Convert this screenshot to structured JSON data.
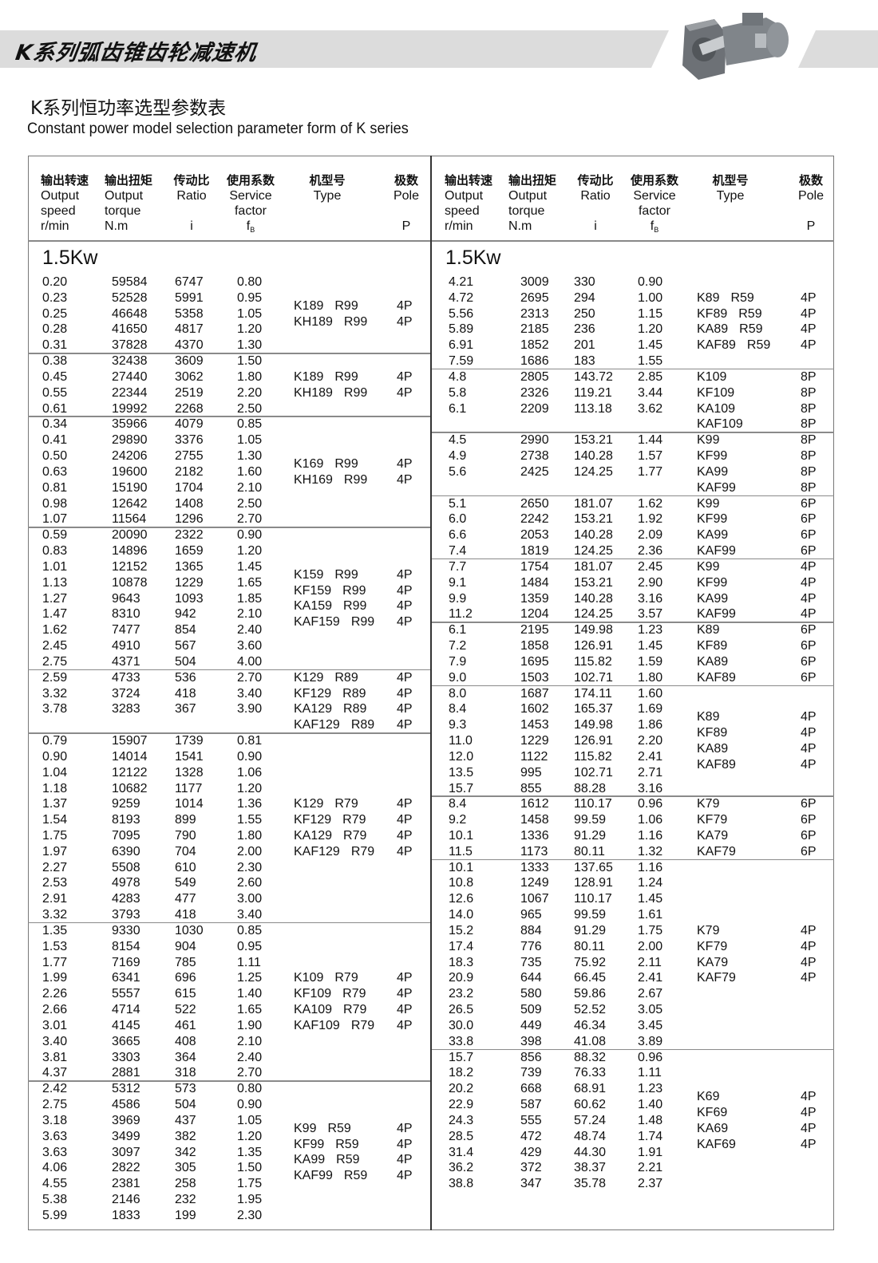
{
  "header": {
    "brand_title": "K系列弧齿锥齿轮减速机",
    "title_cn": "K系列恒功率选型参数表",
    "title_en": "Constant power model selection parameter form of K series"
  },
  "columns": [
    {
      "cn": "输出转速",
      "en1": "Output",
      "en2": "speed",
      "unit": "r/min"
    },
    {
      "cn": "输出扭矩",
      "en1": "Output",
      "en2": "torque",
      "unit": "N.m"
    },
    {
      "cn": "传动比",
      "en1": "Ratio",
      "en2": "",
      "unit": "i"
    },
    {
      "cn": "使用系数",
      "en1": "Service",
      "en2": "factor",
      "unit": "f",
      "unit_sub": "B"
    },
    {
      "cn": "机型号",
      "en1": "Type",
      "en2": "",
      "unit": ""
    },
    {
      "cn": "极数",
      "en1": "Pole",
      "en2": "",
      "unit": "P"
    }
  ],
  "left": {
    "power": "1.5Kw",
    "groups": [
      {
        "rows": [
          [
            "0.20",
            "59584",
            "6747",
            "0.80"
          ],
          [
            "0.23",
            "52528",
            "5991",
            "0.95"
          ],
          [
            "0.25",
            "46648",
            "5358",
            "1.05"
          ],
          [
            "0.28",
            "41650",
            "4817",
            "1.20"
          ],
          [
            "0.31",
            "37828",
            "4370",
            "1.30"
          ]
        ],
        "types": [
          [
            "K189",
            "R99",
            "4P"
          ],
          [
            "KH189",
            "R99",
            "4P"
          ]
        ]
      },
      {
        "rows": [
          [
            "0.38",
            "32438",
            "3609",
            "1.50"
          ],
          [
            "0.45",
            "27440",
            "3062",
            "1.80"
          ],
          [
            "0.55",
            "22344",
            "2519",
            "2.20"
          ],
          [
            "0.61",
            "19992",
            "2268",
            "2.50"
          ]
        ],
        "types": [
          [
            "K189",
            "R99",
            "4P"
          ],
          [
            "KH189",
            "R99",
            "4P"
          ]
        ]
      },
      {
        "rows": [
          [
            "0.34",
            "35966",
            "4079",
            "0.85"
          ],
          [
            "0.41",
            "29890",
            "3376",
            "1.05"
          ],
          [
            "0.50",
            "24206",
            "2755",
            "1.30"
          ],
          [
            "0.63",
            "19600",
            "2182",
            "1.60"
          ],
          [
            "0.81",
            "15190",
            "1704",
            "2.10"
          ],
          [
            "0.98",
            "12642",
            "1408",
            "2.50"
          ],
          [
            "1.07",
            "11564",
            "1296",
            "2.70"
          ]
        ],
        "types": [
          [
            "K169",
            "R99",
            "4P"
          ],
          [
            "KH169",
            "R99",
            "4P"
          ]
        ]
      },
      {
        "rows": [
          [
            "0.59",
            "20090",
            "2322",
            "0.90"
          ],
          [
            "0.83",
            "14896",
            "1659",
            "1.20"
          ],
          [
            "1.01",
            "12152",
            "1365",
            "1.45"
          ],
          [
            "1.13",
            "10878",
            "1229",
            "1.65"
          ],
          [
            "1.27",
            "9643",
            "1093",
            "1.85"
          ],
          [
            "1.47",
            "8310",
            "942",
            "2.10"
          ],
          [
            "1.62",
            "7477",
            "854",
            "2.40"
          ],
          [
            "2.45",
            "4910",
            "567",
            "3.60"
          ],
          [
            "2.75",
            "4371",
            "504",
            "4.00"
          ]
        ],
        "types": [
          [
            "K159",
            "R99",
            "4P"
          ],
          [
            "KF159",
            "R99",
            "4P"
          ],
          [
            "KA159",
            "R99",
            "4P"
          ],
          [
            "KAF159",
            "R99",
            "4P"
          ]
        ]
      },
      {
        "rows": [
          [
            "2.59",
            "4733",
            "536",
            "2.70"
          ],
          [
            "3.32",
            "3724",
            "418",
            "3.40"
          ],
          [
            "3.78",
            "3283",
            "367",
            "3.90"
          ]
        ],
        "types": [
          [
            "K129",
            "R89",
            "4P"
          ],
          [
            "KF129",
            "R89",
            "4P"
          ],
          [
            "KA129",
            "R89",
            "4P"
          ],
          [
            "KAF129",
            "R89",
            "4P"
          ]
        ]
      },
      {
        "rows": [
          [
            "0.79",
            "15907",
            "1739",
            "0.81"
          ],
          [
            "0.90",
            "14014",
            "1541",
            "0.90"
          ],
          [
            "1.04",
            "12122",
            "1328",
            "1.06"
          ],
          [
            "1.18",
            "10682",
            "1177",
            "1.20"
          ],
          [
            "1.37",
            "9259",
            "1014",
            "1.36"
          ],
          [
            "1.54",
            "8193",
            "899",
            "1.55"
          ],
          [
            "1.75",
            "7095",
            "790",
            "1.80"
          ],
          [
            "1.97",
            "6390",
            "704",
            "2.00"
          ],
          [
            "2.27",
            "5508",
            "610",
            "2.30"
          ],
          [
            "2.53",
            "4978",
            "549",
            "2.60"
          ],
          [
            "2.91",
            "4283",
            "477",
            "3.00"
          ],
          [
            "3.32",
            "3793",
            "418",
            "3.40"
          ]
        ],
        "types": [
          [
            "K129",
            "R79",
            "4P"
          ],
          [
            "KF129",
            "R79",
            "4P"
          ],
          [
            "KA129",
            "R79",
            "4P"
          ],
          [
            "KAF129",
            "R79",
            "4P"
          ]
        ]
      },
      {
        "rows": [
          [
            "1.35",
            "9330",
            "1030",
            "0.85"
          ],
          [
            "1.53",
            "8154",
            "904",
            "0.95"
          ],
          [
            "1.77",
            "7169",
            "785",
            "1.11"
          ],
          [
            "1.99",
            "6341",
            "696",
            "1.25"
          ],
          [
            "2.26",
            "5557",
            "615",
            "1.40"
          ],
          [
            "2.66",
            "4714",
            "522",
            "1.65"
          ],
          [
            "3.01",
            "4145",
            "461",
            "1.90"
          ],
          [
            "3.40",
            "3665",
            "408",
            "2.10"
          ],
          [
            "3.81",
            "3303",
            "364",
            "2.40"
          ],
          [
            "4.37",
            "2881",
            "318",
            "2.70"
          ]
        ],
        "types": [
          [
            "K109",
            "R79",
            "4P"
          ],
          [
            "KF109",
            "R79",
            "4P"
          ],
          [
            "KA109",
            "R79",
            "4P"
          ],
          [
            "KAF109",
            "R79",
            "4P"
          ]
        ]
      },
      {
        "rows": [
          [
            "2.42",
            "5312",
            "573",
            "0.80"
          ],
          [
            "2.75",
            "4586",
            "504",
            "0.90"
          ],
          [
            "3.18",
            "3969",
            "437",
            "1.05"
          ],
          [
            "3.63",
            "3499",
            "382",
            "1.20"
          ],
          [
            "3.63",
            "3097",
            "342",
            "1.35"
          ],
          [
            "4.06",
            "2822",
            "305",
            "1.50"
          ],
          [
            "4.55",
            "2381",
            "258",
            "1.75"
          ],
          [
            "5.38",
            "2146",
            "232",
            "1.95"
          ],
          [
            "5.99",
            "1833",
            "199",
            "2.30"
          ]
        ],
        "types": [
          [
            "K99",
            "R59",
            "4P"
          ],
          [
            "KF99",
            "R59",
            "4P"
          ],
          [
            "KA99",
            "R59",
            "4P"
          ],
          [
            "KAF99",
            "R59",
            "4P"
          ]
        ]
      }
    ]
  },
  "right": {
    "power": "1.5Kw",
    "groups": [
      {
        "rows": [
          [
            "4.21",
            "3009",
            "330",
            "0.90"
          ],
          [
            "4.72",
            "2695",
            "294",
            "1.00"
          ],
          [
            "5.56",
            "2313",
            "250",
            "1.15"
          ],
          [
            "5.89",
            "2185",
            "236",
            "1.20"
          ],
          [
            "6.91",
            "1852",
            "201",
            "1.45"
          ],
          [
            "7.59",
            "1686",
            "183",
            "1.55"
          ]
        ],
        "types": [
          [
            "K89",
            "R59",
            "4P"
          ],
          [
            "KF89",
            "R59",
            "4P"
          ],
          [
            "KA89",
            "R59",
            "4P"
          ],
          [
            "KAF89",
            "R59",
            "4P"
          ]
        ]
      },
      {
        "rows": [
          [
            "4.8",
            "2805",
            "143.72",
            "2.85"
          ],
          [
            "5.8",
            "2326",
            "119.21",
            "3.44"
          ],
          [
            "6.1",
            "2209",
            "113.18",
            "3.62"
          ]
        ],
        "types": [
          [
            "K109",
            "",
            "8P"
          ],
          [
            "KF109",
            "",
            "8P"
          ],
          [
            "KA109",
            "",
            "8P"
          ],
          [
            "KAF109",
            "",
            "8P"
          ]
        ]
      },
      {
        "rows": [
          [
            "4.5",
            "2990",
            "153.21",
            "1.44"
          ],
          [
            "4.9",
            "2738",
            "140.28",
            "1.57"
          ],
          [
            "5.6",
            "2425",
            "124.25",
            "1.77"
          ]
        ],
        "types": [
          [
            "K99",
            "",
            "8P"
          ],
          [
            "KF99",
            "",
            "8P"
          ],
          [
            "KA99",
            "",
            "8P"
          ],
          [
            "KAF99",
            "",
            "8P"
          ]
        ]
      },
      {
        "rows": [
          [
            "5.1",
            "2650",
            "181.07",
            "1.62"
          ],
          [
            "6.0",
            "2242",
            "153.21",
            "1.92"
          ],
          [
            "6.6",
            "2053",
            "140.28",
            "2.09"
          ],
          [
            "7.4",
            "1819",
            "124.25",
            "2.36"
          ]
        ],
        "types": [
          [
            "K99",
            "",
            "6P"
          ],
          [
            "KF99",
            "",
            "6P"
          ],
          [
            "KA99",
            "",
            "6P"
          ],
          [
            "KAF99",
            "",
            "6P"
          ]
        ]
      },
      {
        "rows": [
          [
            "7.7",
            "1754",
            "181.07",
            "2.45"
          ],
          [
            "9.1",
            "1484",
            "153.21",
            "2.90"
          ],
          [
            "9.9",
            "1359",
            "140.28",
            "3.16"
          ],
          [
            "11.2",
            "1204",
            "124.25",
            "3.57"
          ]
        ],
        "types": [
          [
            "K99",
            "",
            "4P"
          ],
          [
            "KF99",
            "",
            "4P"
          ],
          [
            "KA99",
            "",
            "4P"
          ],
          [
            "KAF99",
            "",
            "4P"
          ]
        ]
      },
      {
        "rows": [
          [
            "6.1",
            "2195",
            "149.98",
            "1.23"
          ],
          [
            "7.2",
            "1858",
            "126.91",
            "1.45"
          ],
          [
            "7.9",
            "1695",
            "115.82",
            "1.59"
          ],
          [
            "9.0",
            "1503",
            "102.71",
            "1.80"
          ]
        ],
        "types": [
          [
            "K89",
            "",
            "6P"
          ],
          [
            "KF89",
            "",
            "6P"
          ],
          [
            "KA89",
            "",
            "6P"
          ],
          [
            "KAF89",
            "",
            "6P"
          ]
        ]
      },
      {
        "rows": [
          [
            "8.0",
            "1687",
            "174.11",
            "1.60"
          ],
          [
            "8.4",
            "1602",
            "165.37",
            "1.69"
          ],
          [
            "9.3",
            "1453",
            "149.98",
            "1.86"
          ],
          [
            "11.0",
            "1229",
            "126.91",
            "2.20"
          ],
          [
            "12.0",
            "1122",
            "115.82",
            "2.41"
          ],
          [
            "13.5",
            "995",
            "102.71",
            "2.71"
          ],
          [
            "15.7",
            "855",
            "88.28",
            "3.16"
          ]
        ],
        "types": [
          [
            "K89",
            "",
            "4P"
          ],
          [
            "KF89",
            "",
            "4P"
          ],
          [
            "KA89",
            "",
            "4P"
          ],
          [
            "KAF89",
            "",
            "4P"
          ]
        ]
      },
      {
        "rows": [
          [
            "8.4",
            "1612",
            "110.17",
            "0.96"
          ],
          [
            "9.2",
            "1458",
            "99.59",
            "1.06"
          ],
          [
            "10.1",
            "1336",
            "91.29",
            "1.16"
          ],
          [
            "11.5",
            "1173",
            "80.11",
            "1.32"
          ]
        ],
        "types": [
          [
            "K79",
            "",
            "6P"
          ],
          [
            "KF79",
            "",
            "6P"
          ],
          [
            "KA79",
            "",
            "6P"
          ],
          [
            "KAF79",
            "",
            "6P"
          ]
        ]
      },
      {
        "rows": [
          [
            "10.1",
            "1333",
            "137.65",
            "1.16"
          ],
          [
            "10.8",
            "1249",
            "128.91",
            "1.24"
          ],
          [
            "12.6",
            "1067",
            "110.17",
            "1.45"
          ],
          [
            "14.0",
            "965",
            "99.59",
            "1.61"
          ],
          [
            "15.2",
            "884",
            "91.29",
            "1.75"
          ],
          [
            "17.4",
            "776",
            "80.11",
            "2.00"
          ],
          [
            "18.3",
            "735",
            "75.92",
            "2.11"
          ],
          [
            "20.9",
            "644",
            "66.45",
            "2.41"
          ],
          [
            "23.2",
            "580",
            "59.86",
            "2.67"
          ],
          [
            "26.5",
            "509",
            "52.52",
            "3.05"
          ],
          [
            "30.0",
            "449",
            "46.34",
            "3.45"
          ],
          [
            "33.8",
            "398",
            "41.08",
            "3.89"
          ]
        ],
        "types": [
          [
            "K79",
            "",
            "4P"
          ],
          [
            "KF79",
            "",
            "4P"
          ],
          [
            "KA79",
            "",
            "4P"
          ],
          [
            "KAF79",
            "",
            "4P"
          ]
        ]
      },
      {
        "rows": [
          [
            "15.7",
            "856",
            "88.32",
            "0.96"
          ],
          [
            "18.2",
            "739",
            "76.33",
            "1.11"
          ],
          [
            "20.2",
            "668",
            "68.91",
            "1.23"
          ],
          [
            "22.9",
            "587",
            "60.62",
            "1.40"
          ],
          [
            "24.3",
            "555",
            "57.24",
            "1.48"
          ],
          [
            "28.5",
            "472",
            "48.74",
            "1.74"
          ],
          [
            "31.4",
            "429",
            "44.30",
            "1.91"
          ],
          [
            "36.2",
            "372",
            "38.37",
            "2.21"
          ],
          [
            "38.8",
            "347",
            "35.78",
            "2.37"
          ]
        ],
        "types": [
          [
            "K69",
            "",
            "4P"
          ],
          [
            "KF69",
            "",
            "4P"
          ],
          [
            "KA69",
            "",
            "4P"
          ],
          [
            "KAF69",
            "",
            "4P"
          ]
        ]
      }
    ]
  }
}
